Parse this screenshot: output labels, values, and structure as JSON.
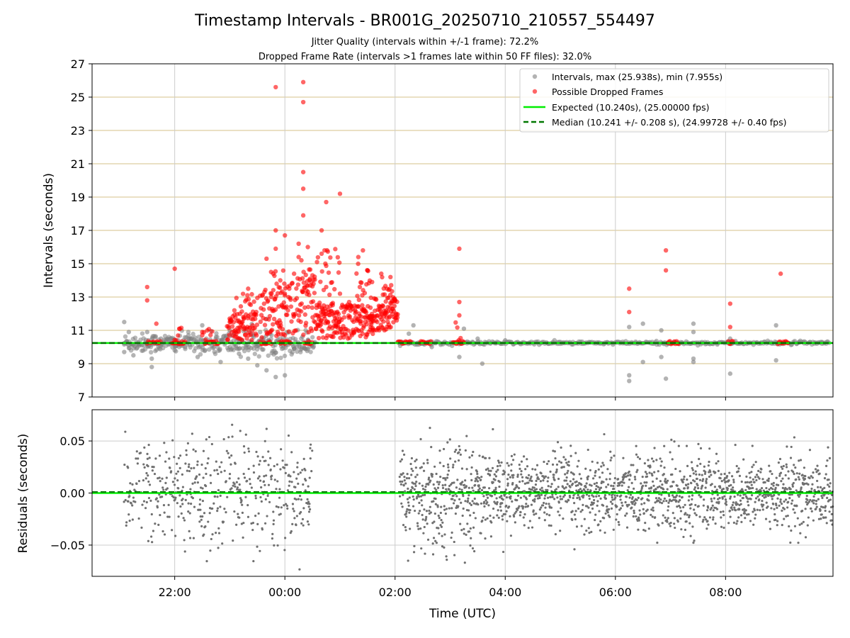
{
  "chart_data": [
    {
      "type": "scatter",
      "title": "Timestamp Intervals - BR001G_20250710_210557_554497",
      "subtitle_1": "Jitter Quality (intervals within +/-1 frame): 72.2%",
      "subtitle_2": "Dropped Frame Rate (intervals >1 frames late within 50 FF files): 32.0%",
      "ylabel": "Intervals (seconds)",
      "ylim": [
        7,
        27
      ],
      "yticks": [
        "7",
        "9",
        "11",
        "13",
        "15",
        "17",
        "19",
        "21",
        "23",
        "25",
        "27"
      ],
      "xlim_hours": [
        20.5,
        33.95
      ],
      "grid": true,
      "legend_position": "top-right",
      "legend": [
        {
          "label": "Intervals, max (25.938s), min (7.955s)",
          "kind": "marker",
          "color": "#808080"
        },
        {
          "label": "Possible Dropped Frames",
          "kind": "marker",
          "color": "#ff0000"
        },
        {
          "label": "Expected (10.240s), (25.00000 fps)",
          "kind": "line",
          "color": "#00ee00"
        },
        {
          "label": "Median (10.241 +/- 0.208 s), (24.99728 +/- 0.40 fps)",
          "kind": "dashed",
          "color": "#007700"
        }
      ],
      "expected_interval": 10.24,
      "median_interval": 10.241,
      "normal_interval_samples": [
        {
          "x": "21:05",
          "y": 11.5
        },
        {
          "x": "21:05",
          "y": 9.7
        },
        {
          "x": "21:10",
          "y": 10.9
        },
        {
          "x": "21:15",
          "y": 9.5
        },
        {
          "x": "21:30",
          "y": 10.9
        },
        {
          "x": "21:35",
          "y": 9.3
        },
        {
          "x": "21:35",
          "y": 8.8
        },
        {
          "x": "21:45",
          "y": 10.5
        },
        {
          "x": "22:00",
          "y": 9.8
        },
        {
          "x": "22:15",
          "y": 10.7
        },
        {
          "x": "22:25",
          "y": 9.4
        },
        {
          "x": "22:30",
          "y": 11.3
        },
        {
          "x": "22:45",
          "y": 10.6
        },
        {
          "x": "22:50",
          "y": 9.1
        },
        {
          "x": "23:00",
          "y": 11.0
        },
        {
          "x": "23:10",
          "y": 9.6
        },
        {
          "x": "23:20",
          "y": 9.3
        },
        {
          "x": "23:30",
          "y": 8.9
        },
        {
          "x": "23:40",
          "y": 8.6
        },
        {
          "x": "23:50",
          "y": 8.2
        },
        {
          "x": "00:00",
          "y": 8.3
        },
        {
          "x": "00:10",
          "y": 9.9
        },
        {
          "x": "00:25",
          "y": 10.4
        },
        {
          "x": "02:15",
          "y": 10.8
        },
        {
          "x": "02:20",
          "y": 11.3
        },
        {
          "x": "02:40",
          "y": 10.0
        },
        {
          "x": "03:10",
          "y": 9.4
        },
        {
          "x": "03:15",
          "y": 11.1
        },
        {
          "x": "03:30",
          "y": 10.5
        },
        {
          "x": "03:35",
          "y": 9.0
        },
        {
          "x": "04:00",
          "y": 10.4
        },
        {
          "x": "05:00",
          "y": 10.3
        },
        {
          "x": "06:15",
          "y": 11.2
        },
        {
          "x": "06:15",
          "y": 8.3
        },
        {
          "x": "06:15",
          "y": 7.96
        },
        {
          "x": "06:30",
          "y": 9.1
        },
        {
          "x": "06:30",
          "y": 11.4
        },
        {
          "x": "06:50",
          "y": 11.0
        },
        {
          "x": "06:50",
          "y": 9.4
        },
        {
          "x": "06:55",
          "y": 8.1
        },
        {
          "x": "07:25",
          "y": 11.4
        },
        {
          "x": "07:25",
          "y": 10.9
        },
        {
          "x": "07:25",
          "y": 9.3
        },
        {
          "x": "07:25",
          "y": 9.1
        },
        {
          "x": "08:05",
          "y": 8.4
        },
        {
          "x": "08:05",
          "y": 10.5
        },
        {
          "x": "08:55",
          "y": 11.3
        },
        {
          "x": "08:55",
          "y": 9.2
        },
        {
          "x": "09:20",
          "y": 10.3
        },
        {
          "x": "09:45",
          "y": 10.2
        }
      ],
      "dropped_frame_samples": [
        {
          "x": "21:30",
          "y": 13.6
        },
        {
          "x": "21:30",
          "y": 12.8
        },
        {
          "x": "21:40",
          "y": 11.4
        },
        {
          "x": "22:00",
          "y": 14.7
        },
        {
          "x": "22:05",
          "y": 11.1
        },
        {
          "x": "22:30",
          "y": 10.9
        },
        {
          "x": "23:00",
          "y": 11.5
        },
        {
          "x": "23:05",
          "y": 12.2
        },
        {
          "x": "23:20",
          "y": 13.5
        },
        {
          "x": "23:40",
          "y": 15.3
        },
        {
          "x": "23:45",
          "y": 13.0
        },
        {
          "x": "23:50",
          "y": 25.6
        },
        {
          "x": "23:50",
          "y": 17.0
        },
        {
          "x": "23:50",
          "y": 15.9
        },
        {
          "x": "23:55",
          "y": 14.0
        },
        {
          "x": "00:00",
          "y": 16.7
        },
        {
          "x": "00:00",
          "y": 13.2
        },
        {
          "x": "00:10",
          "y": 14.4
        },
        {
          "x": "00:15",
          "y": 16.2
        },
        {
          "x": "00:15",
          "y": 15.4
        },
        {
          "x": "00:20",
          "y": 25.9
        },
        {
          "x": "00:20",
          "y": 24.7
        },
        {
          "x": "00:20",
          "y": 20.5
        },
        {
          "x": "00:20",
          "y": 19.5
        },
        {
          "x": "00:20",
          "y": 17.9
        },
        {
          "x": "00:25",
          "y": 16.0
        },
        {
          "x": "00:30",
          "y": 14.3
        },
        {
          "x": "00:35",
          "y": 15.1
        },
        {
          "x": "00:40",
          "y": 17.0
        },
        {
          "x": "00:40",
          "y": 15.6
        },
        {
          "x": "00:45",
          "y": 18.7
        },
        {
          "x": "00:45",
          "y": 13.6
        },
        {
          "x": "01:00",
          "y": 19.2
        },
        {
          "x": "01:00",
          "y": 13.2
        },
        {
          "x": "01:10",
          "y": 12.7
        },
        {
          "x": "01:20",
          "y": 15.4
        },
        {
          "x": "01:25",
          "y": 15.8
        },
        {
          "x": "01:30",
          "y": 14.6
        },
        {
          "x": "01:35",
          "y": 13.9
        },
        {
          "x": "01:45",
          "y": 14.4
        },
        {
          "x": "01:55",
          "y": 14.2
        },
        {
          "x": "02:00",
          "y": 12.8
        },
        {
          "x": "03:10",
          "y": 15.9
        },
        {
          "x": "03:10",
          "y": 12.7
        },
        {
          "x": "03:10",
          "y": 11.9
        },
        {
          "x": "06:15",
          "y": 13.5
        },
        {
          "x": "06:15",
          "y": 12.1
        },
        {
          "x": "06:55",
          "y": 15.8
        },
        {
          "x": "06:55",
          "y": 14.6
        },
        {
          "x": "08:05",
          "y": 12.6
        },
        {
          "x": "08:05",
          "y": 11.2
        },
        {
          "x": "09:00",
          "y": 14.4
        }
      ]
    },
    {
      "type": "scatter",
      "ylabel": "Residuals (seconds)",
      "xlabel": "Time (UTC)",
      "ylim": [
        -0.08,
        0.08
      ],
      "yticks": [
        "−0.05",
        "0.00",
        "0.05"
      ],
      "xticks": [
        "22:00",
        "00:00",
        "02:00",
        "04:00",
        "06:00",
        "08:00"
      ],
      "grid": true,
      "residual_noise_sigma": 0.025,
      "no_data_gap": [
        "00:30",
        "02:05"
      ]
    }
  ]
}
